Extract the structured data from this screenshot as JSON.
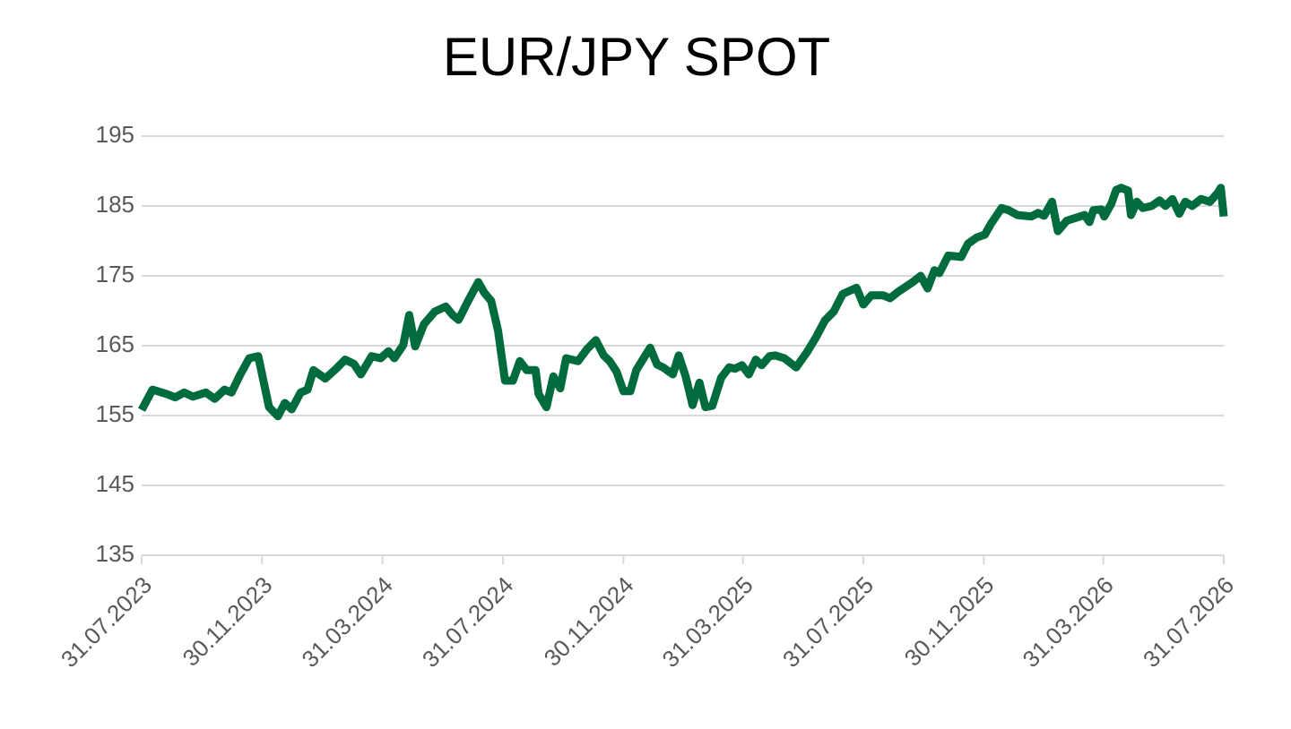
{
  "chart_data": {
    "type": "line",
    "title": "EUR/JPY SPOT",
    "x": [
      "2023-07-31",
      "2023-08-11",
      "2023-08-25",
      "2023-09-03",
      "2023-09-12",
      "2023-09-21",
      "2023-10-04",
      "2023-10-13",
      "2023-10-23",
      "2023-10-30",
      "2023-11-08",
      "2023-11-17",
      "2023-11-26",
      "2023-12-07",
      "2023-12-16",
      "2023-12-23",
      "2023-12-30",
      "2024-01-08",
      "2024-01-15",
      "2024-01-21",
      "2024-02-02",
      "2024-02-13",
      "2024-02-22",
      "2024-03-02",
      "2024-03-09",
      "2024-03-20",
      "2024-03-29",
      "2024-04-06",
      "2024-04-12",
      "2024-04-21",
      "2024-04-27",
      "2024-05-03",
      "2024-05-12",
      "2024-05-23",
      "2024-06-03",
      "2024-06-10",
      "2024-06-16",
      "2024-06-26",
      "2024-07-06",
      "2024-07-12",
      "2024-07-19",
      "2024-07-26",
      "2024-08-02",
      "2024-08-10",
      "2024-08-17",
      "2024-08-24",
      "2024-09-02",
      "2024-09-05",
      "2024-09-13",
      "2024-09-20",
      "2024-09-27",
      "2024-10-03",
      "2024-10-15",
      "2024-10-24",
      "2024-11-02",
      "2024-11-10",
      "2024-11-16",
      "2024-11-23",
      "2024-11-30",
      "2024-12-07",
      "2024-12-13",
      "2024-12-27",
      "2025-01-03",
      "2025-01-09",
      "2025-01-19",
      "2025-01-25",
      "2025-02-01",
      "2025-02-08",
      "2025-02-15",
      "2025-02-21",
      "2025-02-28",
      "2025-03-09",
      "2025-03-17",
      "2025-03-23",
      "2025-03-30",
      "2025-04-06",
      "2025-04-13",
      "2025-04-19",
      "2025-04-27",
      "2025-05-03",
      "2025-05-12",
      "2025-05-24",
      "2025-06-04",
      "2025-06-13",
      "2025-06-22",
      "2025-07-01",
      "2025-07-10",
      "2025-07-24",
      "2025-07-31",
      "2025-08-08",
      "2025-08-20",
      "2025-08-27",
      "2025-09-05",
      "2025-09-19",
      "2025-09-27",
      "2025-10-04",
      "2025-10-11",
      "2025-10-16",
      "2025-10-25",
      "2025-11-07",
      "2025-11-14",
      "2025-11-23",
      "2025-12-01",
      "2025-12-07",
      "2025-12-18",
      "2025-12-25",
      "2026-01-03",
      "2026-01-17",
      "2026-01-24",
      "2026-01-30",
      "2026-02-07",
      "2026-02-13",
      "2026-02-22",
      "2026-03-03",
      "2026-03-12",
      "2026-03-17",
      "2026-03-21",
      "2026-03-29",
      "2026-04-01",
      "2026-04-08",
      "2026-04-13",
      "2026-04-18",
      "2026-04-25",
      "2026-04-28",
      "2026-05-04",
      "2026-05-10",
      "2026-05-19",
      "2026-05-27",
      "2026-06-02",
      "2026-06-09",
      "2026-06-16",
      "2026-06-22",
      "2026-06-29",
      "2026-07-08",
      "2026-07-17",
      "2026-07-25",
      "2026-07-28",
      "2026-07-31"
    ],
    "series": [
      {
        "color": "#006b3c",
        "values": [
          155.8,
          158.7,
          158.1,
          157.6,
          158.3,
          157.7,
          158.3,
          157.4,
          158.7,
          158.3,
          160.9,
          163.2,
          163.5,
          156.2,
          154.9,
          156.8,
          155.9,
          158.3,
          158.7,
          161.5,
          160.3,
          161.7,
          163.0,
          162.4,
          160.9,
          163.5,
          163.2,
          164.2,
          163.2,
          165.1,
          169.4,
          164.9,
          168.1,
          169.9,
          170.6,
          169.4,
          168.7,
          171.5,
          174.1,
          172.6,
          171.4,
          167.1,
          160.0,
          160.0,
          162.8,
          161.5,
          161.5,
          158.1,
          156.2,
          160.6,
          158.9,
          163.2,
          162.8,
          164.5,
          165.8,
          163.6,
          162.8,
          161.3,
          158.5,
          158.5,
          161.5,
          164.7,
          162.3,
          161.9,
          160.9,
          163.6,
          160.6,
          156.5,
          159.7,
          156.2,
          156.4,
          160.4,
          161.9,
          161.7,
          162.2,
          160.9,
          163.0,
          162.2,
          163.5,
          163.6,
          163.2,
          161.9,
          164.1,
          166.2,
          168.6,
          169.9,
          172.4,
          173.3,
          170.9,
          172.2,
          172.2,
          171.8,
          172.8,
          174.1,
          175.0,
          173.2,
          175.8,
          175.4,
          177.9,
          177.7,
          179.6,
          180.5,
          180.9,
          182.4,
          184.7,
          184.4,
          183.7,
          183.5,
          184.0,
          183.6,
          185.6,
          181.4,
          182.9,
          183.3,
          183.7,
          182.7,
          184.4,
          184.5,
          183.5,
          185.3,
          187.3,
          187.6,
          187.2,
          183.7,
          185.6,
          184.7,
          185.0,
          185.8,
          185.0,
          186.0,
          183.9,
          185.6,
          185.0,
          186.0,
          185.6,
          186.9,
          187.6,
          183.5
        ]
      }
    ],
    "xlim": [
      "2023-07-31",
      "2026-07-31"
    ],
    "xticks": [
      {
        "value": "2023-07-31",
        "label": "31.07.2023"
      },
      {
        "value": "2023-11-30",
        "label": "30.11.2023"
      },
      {
        "value": "2024-03-31",
        "label": "31.03.2024"
      },
      {
        "value": "2024-07-31",
        "label": "31.07.2024"
      },
      {
        "value": "2024-11-30",
        "label": "30.11.2024"
      },
      {
        "value": "2025-03-31",
        "label": "31.03.2025"
      },
      {
        "value": "2025-07-31",
        "label": "31.07.2025"
      },
      {
        "value": "2025-11-30",
        "label": "30.11.2025"
      },
      {
        "value": "2026-03-31",
        "label": "31.03.2026"
      },
      {
        "value": "2026-07-31",
        "label": "31.07.2026"
      }
    ],
    "ylim": [
      135,
      195
    ],
    "yticks": [
      135,
      145,
      155,
      165,
      175,
      185,
      195
    ],
    "grid": true
  }
}
